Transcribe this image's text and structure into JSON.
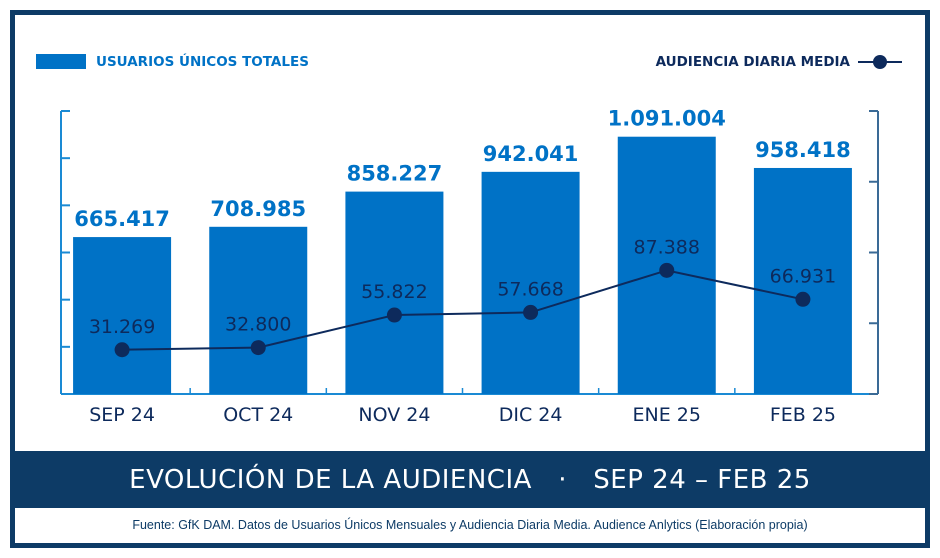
{
  "chart_data": {
    "type": "bar+line",
    "categories": [
      "SEP 24",
      "OCT 24",
      "NOV 24",
      "DIC 24",
      "ENE 25",
      "FEB 25"
    ],
    "series": [
      {
        "name": "USUARIOS ÚNICOS TOTALES",
        "type": "bar",
        "axis": "left",
        "values": [
          665417,
          708985,
          858227,
          942041,
          1091004,
          958418
        ],
        "labels": [
          "665.417",
          "708.985",
          "858.227",
          "942.041",
          "1.091.004",
          "958.418"
        ],
        "color": "#0072c6"
      },
      {
        "name": "AUDIENCIA DIARIA MEDIA",
        "type": "line",
        "axis": "right",
        "values": [
          31269,
          32800,
          55822,
          57668,
          87388,
          66931
        ],
        "labels": [
          "31.269",
          "32.800",
          "55.822",
          "57.668",
          "87.388",
          "66.931"
        ],
        "color": "#0d2a5c"
      }
    ],
    "ylim_left": [
      0,
      1200000
    ],
    "ylim_right": [
      0,
      200000
    ],
    "tick_labels_shown": false,
    "grid": false,
    "legend": "top"
  },
  "title_left": "EVOLUCIÓN DE LA AUDIENCIA",
  "title_sep": "·",
  "title_right": "SEP 24 – FEB 25",
  "source": "Fuente: GfK DAM. Datos de Usuarios Únicos Mensuales y Audiencia Diaria Media. Audience Anlytics (Elaboración propia)",
  "colors": {
    "frame": "#0d3b66",
    "bar": "#0072c6",
    "line": "#0d2a5c",
    "left_axis": "#1a8ad4",
    "right_axis": "#3a6a96"
  }
}
